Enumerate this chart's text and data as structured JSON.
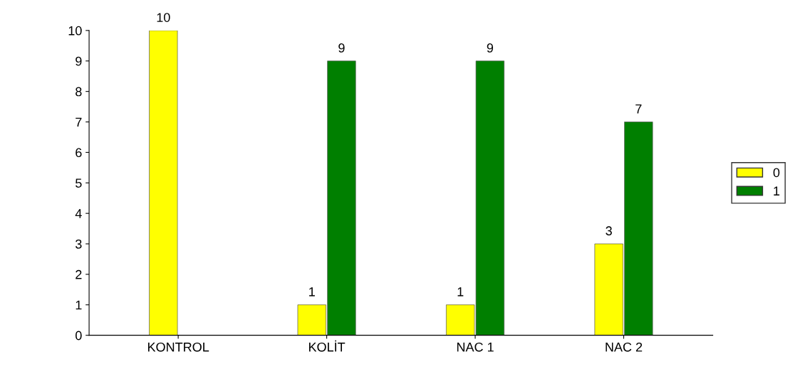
{
  "chart_data": {
    "type": "bar",
    "categories": [
      "KONTROL",
      "KOLİT",
      "NAC 1",
      "NAC 2"
    ],
    "series": [
      {
        "name": "0",
        "color": "#ffff00",
        "values": [
          10,
          1,
          1,
          3
        ]
      },
      {
        "name": "1",
        "color": "#007f00",
        "values": [
          null,
          9,
          9,
          7
        ]
      }
    ],
    "ylim": [
      0,
      10
    ],
    "yticks": [
      0,
      1,
      2,
      3,
      4,
      5,
      6,
      7,
      8,
      9,
      10
    ],
    "data_labels": true,
    "legend": "right",
    "grid": false
  }
}
